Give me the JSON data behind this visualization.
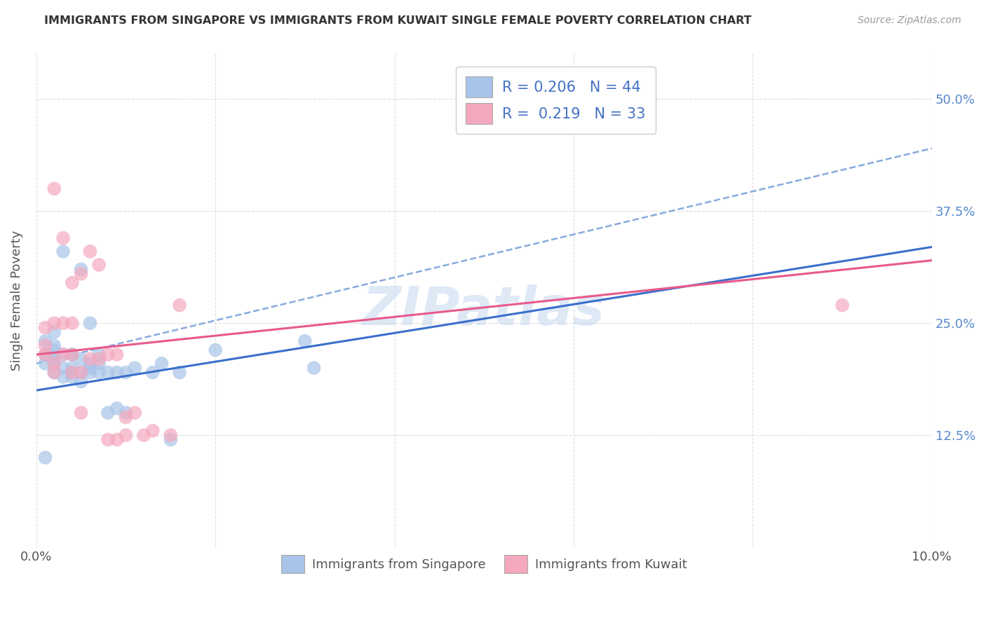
{
  "title": "IMMIGRANTS FROM SINGAPORE VS IMMIGRANTS FROM KUWAIT SINGLE FEMALE POVERTY CORRELATION CHART",
  "source": "Source: ZipAtlas.com",
  "ylabel": "Single Female Poverty",
  "x_min": 0.0,
  "x_max": 0.1,
  "y_min": 0.0,
  "y_max": 0.55,
  "color_singapore": "#a8c4e8",
  "color_kuwait": "#f4a8be",
  "trendline_color_singapore": "#3a6fcc",
  "trendline_color_kuwait": "#e85a8a",
  "trendline_dashed_color": "#88aadd",
  "watermark": "ZIPatlas",
  "sg_trend_x0": 0.0,
  "sg_trend_y0": 0.175,
  "sg_trend_x1": 0.1,
  "sg_trend_y1": 0.335,
  "kw_trend_x0": 0.0,
  "kw_trend_y0": 0.215,
  "kw_trend_x1": 0.1,
  "kw_trend_y1": 0.32,
  "dash_trend_x0": 0.0,
  "dash_trend_y0": 0.205,
  "dash_trend_x1": 0.1,
  "dash_trend_y1": 0.445,
  "sg_x": [
    0.001,
    0.001,
    0.001,
    0.002,
    0.002,
    0.002,
    0.002,
    0.002,
    0.003,
    0.003,
    0.003,
    0.003,
    0.004,
    0.004,
    0.004,
    0.004,
    0.004,
    0.005,
    0.005,
    0.005,
    0.005,
    0.006,
    0.006,
    0.006,
    0.006,
    0.007,
    0.007,
    0.007,
    0.008,
    0.008,
    0.009,
    0.009,
    0.01,
    0.01,
    0.011,
    0.013,
    0.014,
    0.015,
    0.016,
    0.02,
    0.03,
    0.031,
    0.001,
    0.002
  ],
  "sg_y": [
    0.205,
    0.215,
    0.23,
    0.195,
    0.205,
    0.21,
    0.22,
    0.225,
    0.19,
    0.2,
    0.215,
    0.33,
    0.19,
    0.195,
    0.2,
    0.215,
    0.215,
    0.185,
    0.195,
    0.21,
    0.31,
    0.195,
    0.2,
    0.205,
    0.25,
    0.195,
    0.205,
    0.215,
    0.15,
    0.195,
    0.155,
    0.195,
    0.15,
    0.195,
    0.2,
    0.195,
    0.205,
    0.12,
    0.195,
    0.22,
    0.23,
    0.2,
    0.1,
    0.24
  ],
  "kw_x": [
    0.001,
    0.001,
    0.001,
    0.002,
    0.002,
    0.002,
    0.003,
    0.003,
    0.003,
    0.004,
    0.004,
    0.004,
    0.005,
    0.005,
    0.005,
    0.006,
    0.006,
    0.007,
    0.007,
    0.008,
    0.008,
    0.009,
    0.009,
    0.01,
    0.01,
    0.011,
    0.012,
    0.013,
    0.015,
    0.016,
    0.09,
    0.002,
    0.004
  ],
  "kw_y": [
    0.215,
    0.225,
    0.245,
    0.195,
    0.205,
    0.25,
    0.215,
    0.25,
    0.345,
    0.195,
    0.215,
    0.295,
    0.15,
    0.195,
    0.305,
    0.21,
    0.33,
    0.21,
    0.315,
    0.12,
    0.215,
    0.12,
    0.215,
    0.125,
    0.145,
    0.15,
    0.125,
    0.13,
    0.125,
    0.27,
    0.27,
    0.4,
    0.25
  ],
  "bg_color": "#ffffff",
  "grid_color": "#dddddd",
  "grid_style": "--"
}
